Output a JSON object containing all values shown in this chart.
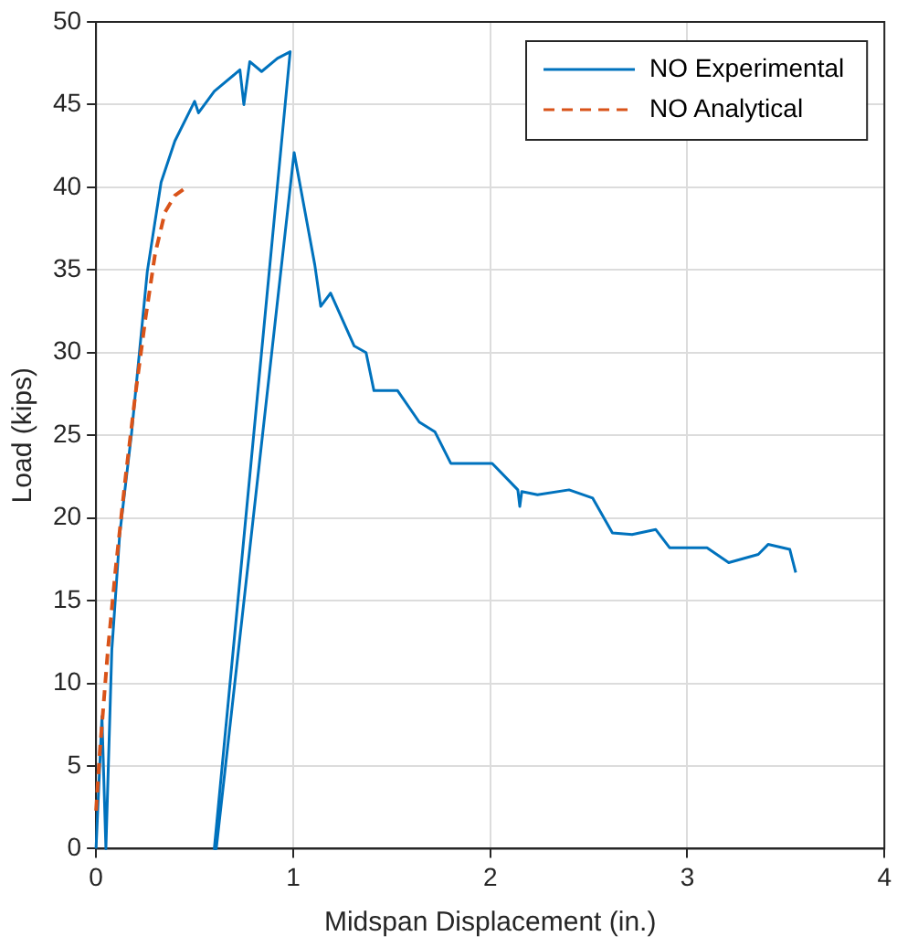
{
  "chart_data": {
    "type": "line",
    "xlabel": "Midspan Displacement (in.)",
    "ylabel": "Load (kips)",
    "xlim": [
      0,
      4
    ],
    "xticks": [
      0,
      1,
      2,
      3,
      4
    ],
    "ylim": [
      0,
      50
    ],
    "yticks": [
      0,
      5,
      10,
      15,
      20,
      25,
      30,
      35,
      40,
      45,
      50
    ],
    "grid": true,
    "legend": "top right",
    "marker": "none",
    "series": [
      {
        "name": "NO Experimental",
        "color": "#0072bd",
        "line_style": "solid",
        "x": [
          0,
          0.03,
          0.05,
          0.08,
          0.09,
          0.12,
          0.18,
          0.26,
          0.33,
          0.4,
          0.5,
          0.52,
          0.6,
          0.73,
          0.75,
          0.78,
          0.84,
          0.92,
          0.985,
          0.6,
          0.61,
          1.005,
          1.11,
          1.14,
          1.19,
          1.31,
          1.37,
          1.41,
          1.53,
          1.64,
          1.72,
          1.8,
          2.01,
          2.14,
          2.15,
          2.16,
          2.24,
          2.4,
          2.52,
          2.62,
          2.72,
          2.84,
          2.91,
          3.1,
          3.21,
          3.36,
          3.41,
          3.52,
          3.55
        ],
        "values": [
          0,
          8,
          0,
          12,
          13.7,
          19,
          25.1,
          34.9,
          40.3,
          42.8,
          45.2,
          44.5,
          45.8,
          47.1,
          45,
          47.6,
          47,
          47.8,
          48.2,
          0,
          0,
          42.1,
          35.3,
          32.8,
          33.6,
          30.4,
          30,
          27.7,
          27.7,
          25.8,
          25.2,
          23.3,
          23.3,
          21.7,
          20.7,
          21.6,
          21.4,
          21.7,
          21.2,
          19.1,
          19,
          19.3,
          18.2,
          18.2,
          17.3,
          17.8,
          18.4,
          18.1,
          16.7
        ]
      },
      {
        "name": "NO Analytical",
        "color": "#d95319",
        "line_style": "dashed",
        "x": [
          0,
          0.02,
          0.06,
          0.1,
          0.15,
          0.2,
          0.25,
          0.3,
          0.35,
          0.4,
          0.47
        ],
        "values": [
          2.3,
          6,
          12,
          17,
          22.5,
          27.5,
          32,
          36,
          38.5,
          39.5,
          40.1
        ]
      }
    ]
  }
}
